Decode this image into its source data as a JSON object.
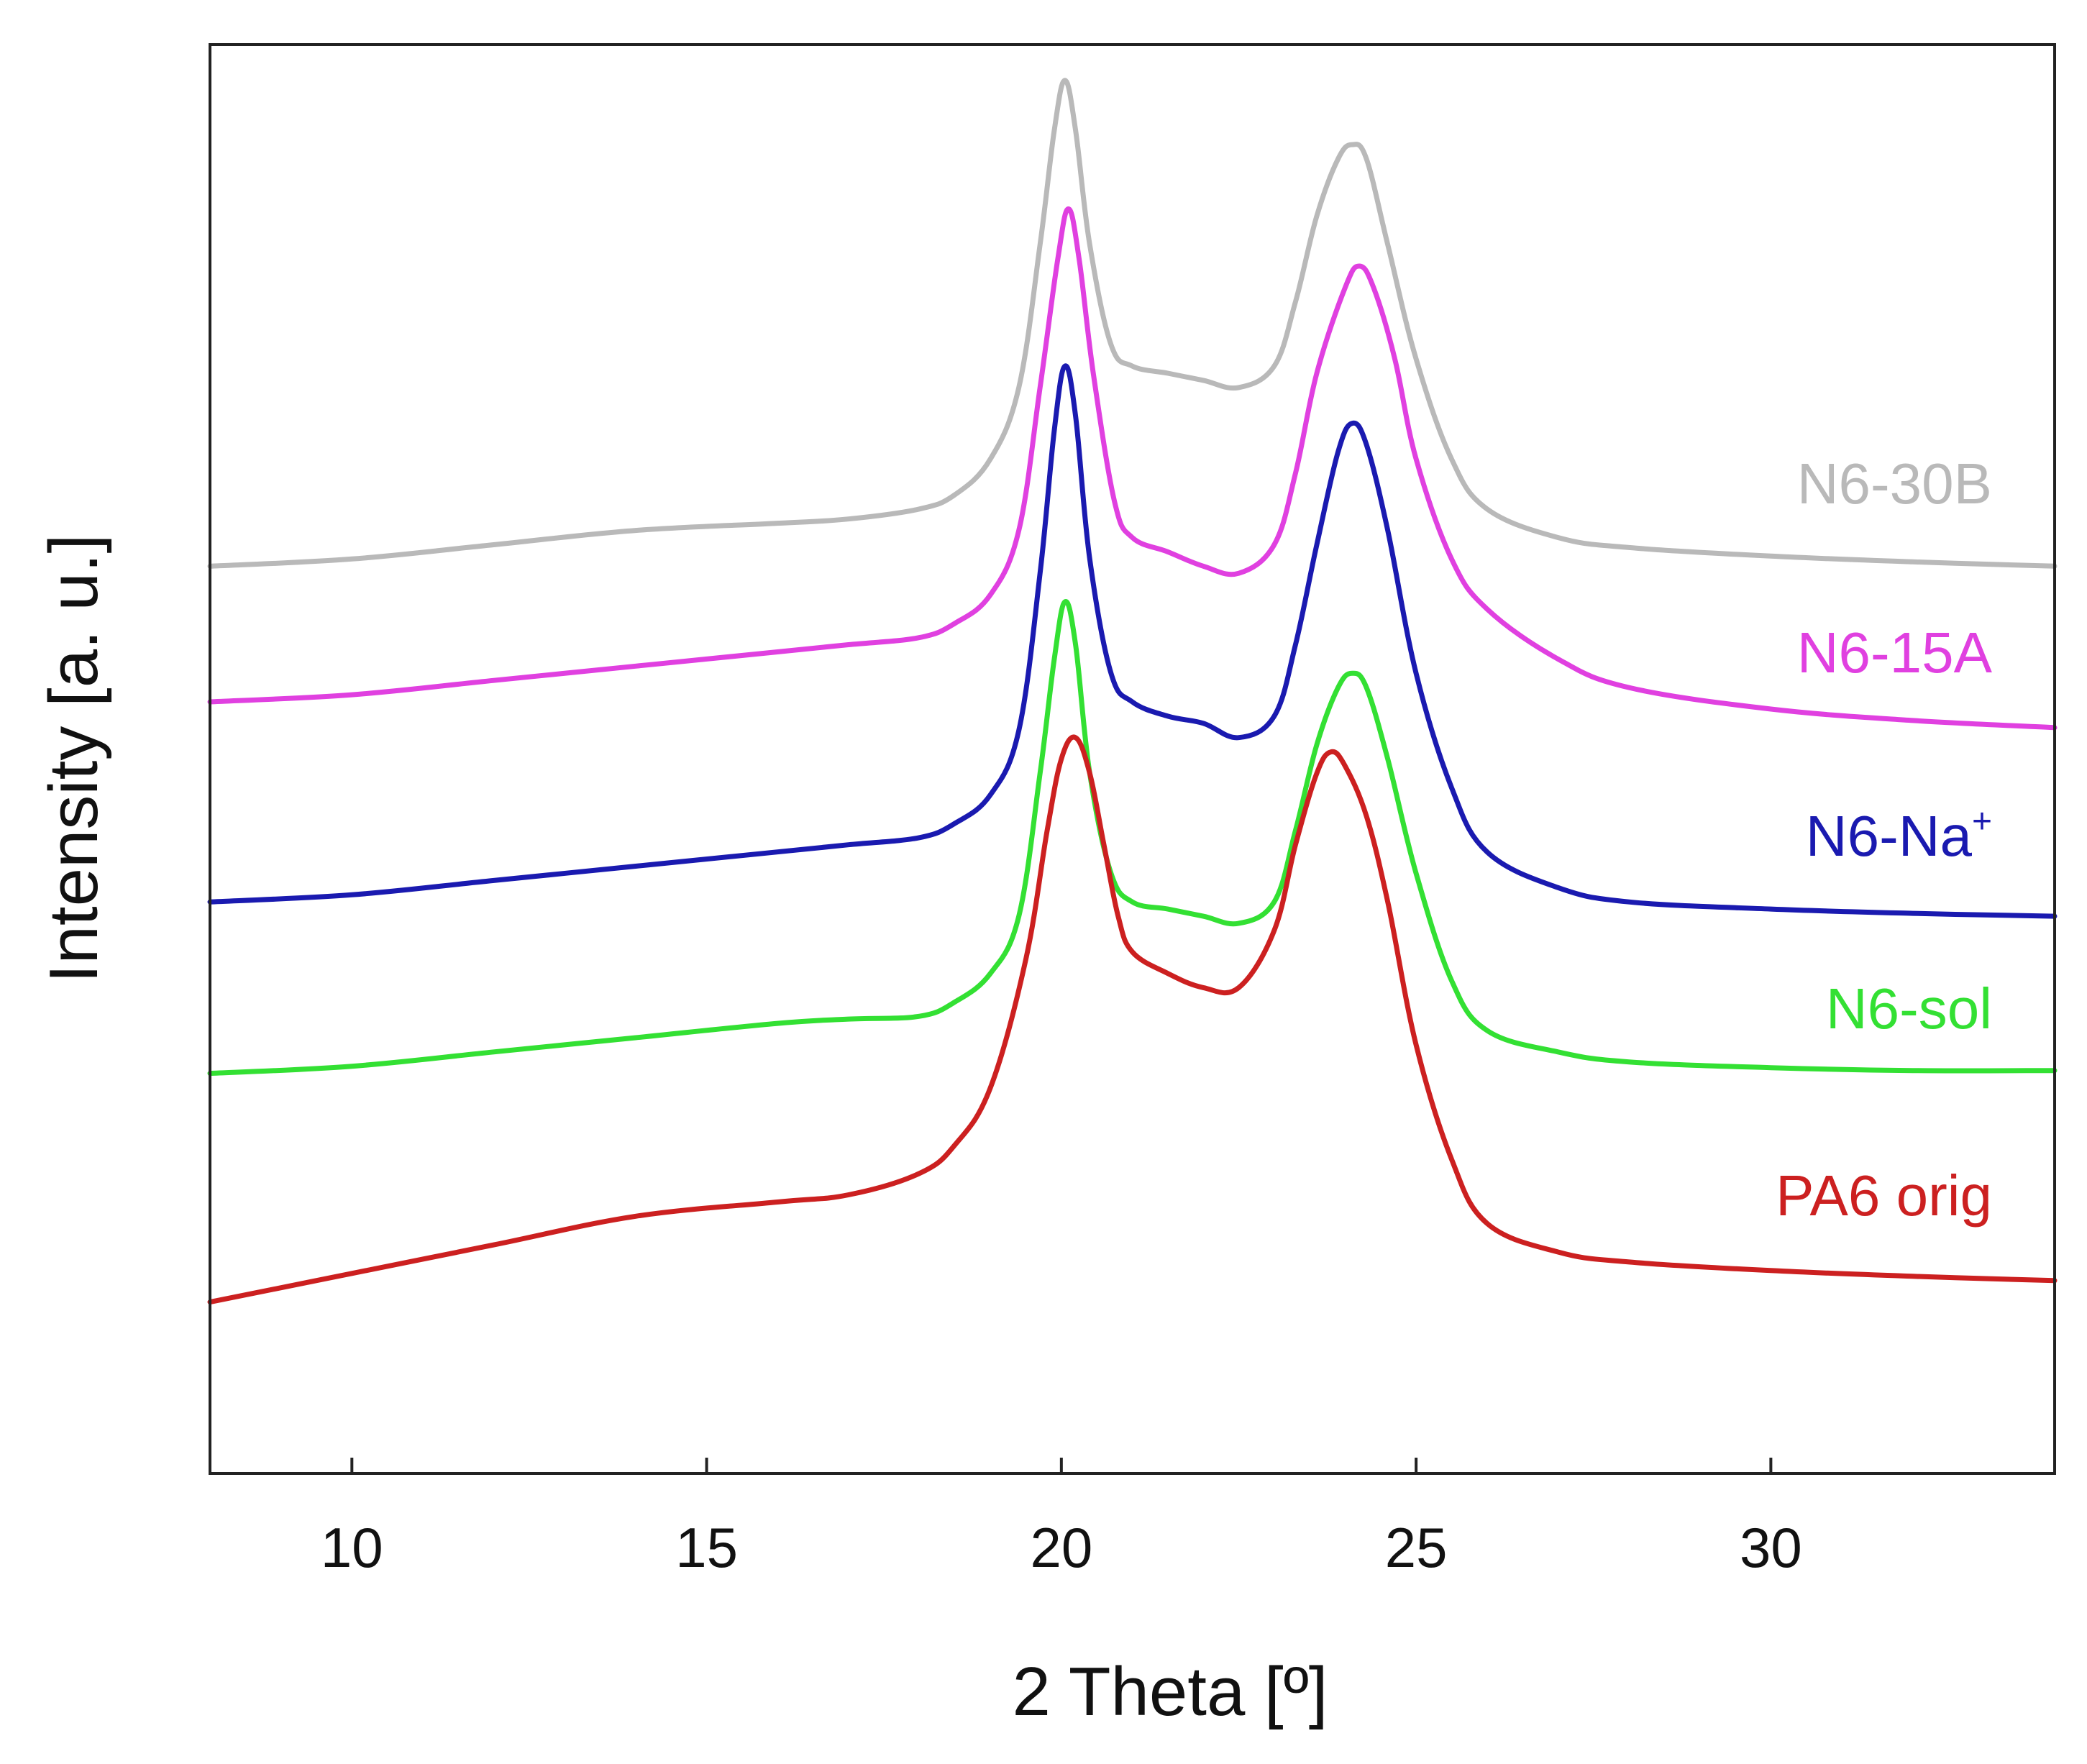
{
  "chart_data": {
    "type": "line",
    "title": "",
    "xlabel": "2 Theta [º]",
    "ylabel": "Intensity [a. u.]",
    "xlim": [
      8,
      34
    ],
    "ylim": [
      0,
      10
    ],
    "xticks": [
      10,
      15,
      20,
      25,
      30
    ],
    "yticks_visible": false,
    "grid": false,
    "legend": "inline labels at right end of each curve",
    "series": [
      {
        "name": "N6-30B",
        "label_main": "N6-30B",
        "label_sup": "",
        "color": "#b9b9b9",
        "x": [
          8,
          10,
          12,
          14,
          16,
          17,
          18,
          18.5,
          19,
          19.4,
          19.7,
          19.9,
          20.05,
          20.2,
          20.4,
          20.7,
          21,
          21.5,
          22,
          22.5,
          23,
          23.3,
          23.6,
          23.9,
          24.1,
          24.3,
          24.6,
          25,
          25.5,
          26,
          27,
          28,
          30,
          32,
          34
        ],
        "y": [
          6.35,
          6.4,
          6.5,
          6.6,
          6.65,
          6.68,
          6.75,
          6.85,
          7.1,
          7.6,
          8.6,
          9.4,
          9.75,
          9.4,
          8.6,
          7.9,
          7.75,
          7.7,
          7.65,
          7.6,
          7.75,
          8.2,
          8.8,
          9.2,
          9.3,
          9.2,
          8.6,
          7.8,
          7.1,
          6.75,
          6.55,
          6.48,
          6.42,
          6.38,
          6.35
        ]
      },
      {
        "name": "N6-15A",
        "label_main": "N6-15A",
        "label_sup": "",
        "color": "#e040e0",
        "x": [
          8,
          10,
          12,
          14,
          16,
          17,
          18,
          18.5,
          19,
          19.4,
          19.7,
          19.95,
          20.1,
          20.25,
          20.45,
          20.75,
          21,
          21.5,
          22,
          22.5,
          23,
          23.3,
          23.6,
          24,
          24.2,
          24.4,
          24.7,
          25,
          25.5,
          26,
          27,
          28,
          30,
          32,
          34
        ],
        "y": [
          5.4,
          5.45,
          5.55,
          5.65,
          5.75,
          5.8,
          5.85,
          5.95,
          6.15,
          6.6,
          7.6,
          8.5,
          8.85,
          8.5,
          7.7,
          6.8,
          6.55,
          6.45,
          6.35,
          6.3,
          6.5,
          7.0,
          7.7,
          8.3,
          8.45,
          8.3,
          7.8,
          7.1,
          6.4,
          6.05,
          5.7,
          5.5,
          5.35,
          5.27,
          5.22
        ]
      },
      {
        "name": "N6-Na+",
        "label_main": "N6-Na",
        "label_sup": "+",
        "color": "#1a1ab0",
        "x": [
          8,
          10,
          12,
          14,
          16,
          17,
          18,
          18.5,
          19,
          19.4,
          19.7,
          19.9,
          20.05,
          20.2,
          20.4,
          20.7,
          21,
          21.5,
          22,
          22.5,
          23,
          23.3,
          23.6,
          23.9,
          24.1,
          24.3,
          24.6,
          25,
          25.5,
          26,
          27,
          28,
          30,
          32,
          34
        ],
        "y": [
          4,
          4.05,
          4.15,
          4.25,
          4.35,
          4.4,
          4.45,
          4.55,
          4.75,
          5.2,
          6.3,
          7.3,
          7.75,
          7.4,
          6.4,
          5.6,
          5.4,
          5.3,
          5.25,
          5.15,
          5.3,
          5.8,
          6.5,
          7.15,
          7.35,
          7.2,
          6.6,
          5.6,
          4.8,
          4.35,
          4.1,
          4.0,
          3.95,
          3.92,
          3.9
        ]
      },
      {
        "name": "N6-sol",
        "label_main": "N6-sol",
        "label_sup": "",
        "color": "#33e033",
        "x": [
          8,
          10,
          12,
          14,
          16,
          17,
          18,
          18.5,
          19,
          19.4,
          19.7,
          19.9,
          20.05,
          20.2,
          20.4,
          20.7,
          21,
          21.5,
          22,
          22.5,
          23,
          23.3,
          23.6,
          23.9,
          24.1,
          24.3,
          24.6,
          25,
          25.5,
          26,
          27,
          28,
          30,
          32,
          34
        ],
        "y": [
          2.8,
          2.85,
          2.95,
          3.05,
          3.15,
          3.18,
          3.2,
          3.3,
          3.5,
          3.9,
          4.9,
          5.7,
          6.1,
          5.8,
          4.9,
          4.2,
          4.0,
          3.95,
          3.9,
          3.85,
          4.0,
          4.5,
          5.1,
          5.5,
          5.6,
          5.5,
          5.0,
          4.2,
          3.45,
          3.1,
          2.95,
          2.88,
          2.84,
          2.82,
          2.82
        ]
      },
      {
        "name": "PA6 orig",
        "label_main": "PA6 orig",
        "label_sup": "",
        "color": "#cc2020",
        "x": [
          8,
          10,
          12,
          14,
          16,
          17,
          18,
          18.5,
          19,
          19.5,
          19.8,
          20.0,
          20.2,
          20.4,
          20.6,
          20.8,
          21.0,
          21.5,
          22,
          22.5,
          23,
          23.3,
          23.6,
          23.8,
          24.0,
          24.3,
          24.6,
          25.0,
          25.5,
          26,
          27,
          28,
          30,
          32,
          34
        ],
        "y": [
          1.2,
          1.4,
          1.6,
          1.8,
          1.9,
          1.95,
          2.1,
          2.3,
          2.7,
          3.6,
          4.5,
          5.0,
          5.15,
          4.9,
          4.4,
          3.9,
          3.65,
          3.5,
          3.4,
          3.4,
          3.8,
          4.4,
          4.9,
          5.05,
          4.95,
          4.6,
          4.0,
          3.0,
          2.2,
          1.75,
          1.55,
          1.48,
          1.42,
          1.38,
          1.35
        ]
      }
    ]
  }
}
